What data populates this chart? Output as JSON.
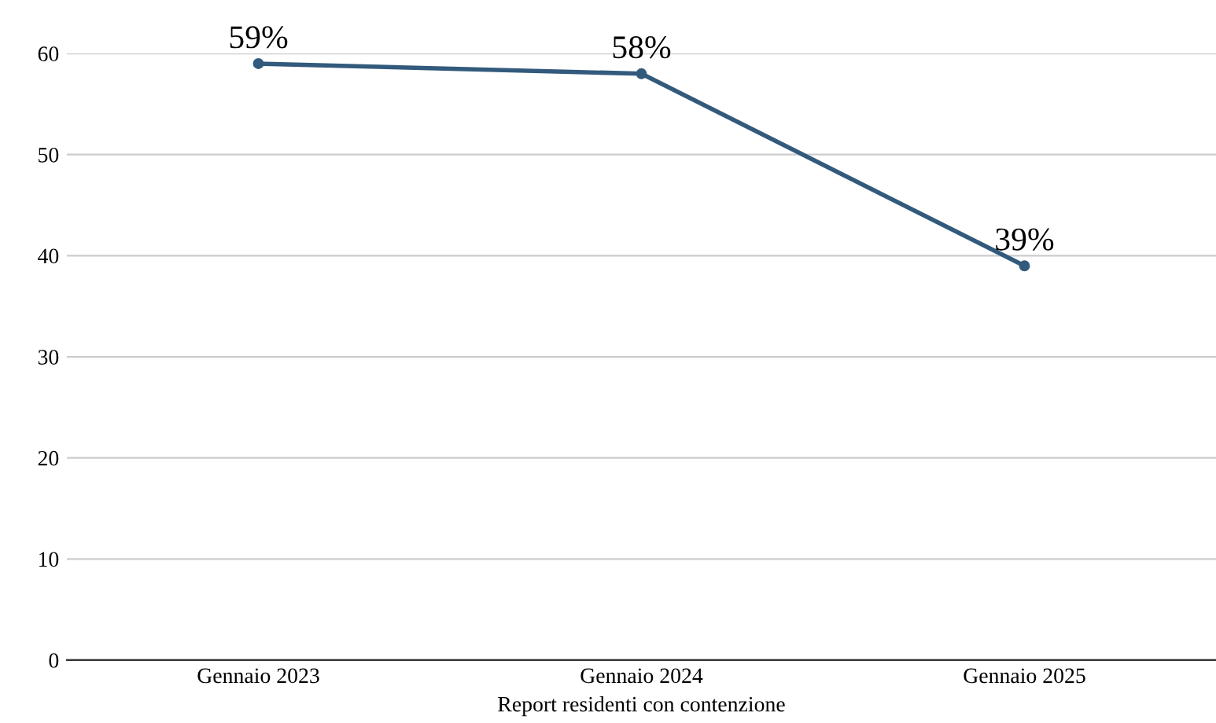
{
  "chart_data": {
    "type": "line",
    "xlabel": "Report residenti con contenzione",
    "categories": [
      "Gennaio 2023",
      "Gennaio 2024",
      "Gennaio 2025"
    ],
    "series": [
      {
        "color": "#325a7c",
        "values": [
          59,
          58,
          39
        ],
        "value_labels": [
          "59%",
          "58%",
          "39%"
        ]
      }
    ],
    "ylim": [
      0,
      60
    ],
    "yticks": [
      0,
      10,
      20,
      30,
      40,
      50,
      60
    ],
    "grid": "y",
    "marker": "circle",
    "line_style": "solid",
    "legend": false
  }
}
